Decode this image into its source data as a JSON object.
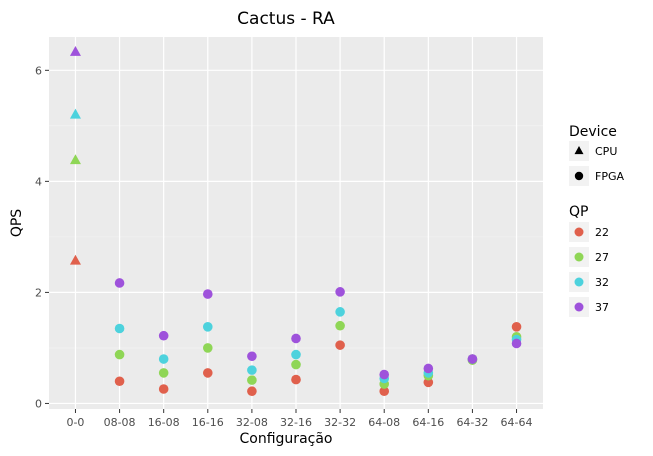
{
  "chart_data": {
    "type": "scatter",
    "title": "Cactus - RA",
    "xlabel": "Configuração",
    "ylabel": "QPS",
    "categories": [
      "0-0",
      "08-08",
      "16-08",
      "16-16",
      "32-08",
      "32-16",
      "32-32",
      "64-08",
      "64-16",
      "64-32",
      "64-64"
    ],
    "yticks": [
      0,
      2,
      4,
      6
    ],
    "ylim": [
      -0.1,
      6.6
    ],
    "grid": true,
    "legend_position": "right",
    "legends": {
      "shape": {
        "title": "Device",
        "entries": [
          {
            "label": "CPU",
            "shape": "triangle"
          },
          {
            "label": "FPGA",
            "shape": "circle"
          }
        ]
      },
      "color": {
        "title": "QP",
        "entries": [
          {
            "label": "22",
            "color": "#E0604C"
          },
          {
            "label": "27",
            "color": "#8FD656"
          },
          {
            "label": "32",
            "color": "#4DD2DD"
          },
          {
            "label": "37",
            "color": "#9E52DB"
          }
        ]
      }
    },
    "series": [
      {
        "qp": "22",
        "device": "CPU",
        "color": "#E0604C",
        "points": [
          {
            "x": "0-0",
            "y": 2.57
          }
        ]
      },
      {
        "qp": "27",
        "device": "CPU",
        "color": "#8FD656",
        "points": [
          {
            "x": "0-0",
            "y": 4.38
          }
        ]
      },
      {
        "qp": "32",
        "device": "CPU",
        "color": "#4DD2DD",
        "points": [
          {
            "x": "0-0",
            "y": 5.2
          }
        ]
      },
      {
        "qp": "37",
        "device": "CPU",
        "color": "#9E52DB",
        "points": [
          {
            "x": "0-0",
            "y": 6.33
          }
        ]
      },
      {
        "qp": "22",
        "device": "FPGA",
        "color": "#E0604C",
        "points": [
          {
            "x": "08-08",
            "y": 0.4
          },
          {
            "x": "16-08",
            "y": 0.26
          },
          {
            "x": "16-16",
            "y": 0.55
          },
          {
            "x": "32-08",
            "y": 0.22
          },
          {
            "x": "32-16",
            "y": 0.43
          },
          {
            "x": "32-32",
            "y": 1.05
          },
          {
            "x": "64-08",
            "y": 0.22
          },
          {
            "x": "64-16",
            "y": 0.38
          },
          {
            "x": "64-32",
            "y": 0.8
          },
          {
            "x": "64-64",
            "y": 1.38
          }
        ]
      },
      {
        "qp": "27",
        "device": "FPGA",
        "color": "#8FD656",
        "points": [
          {
            "x": "08-08",
            "y": 0.88
          },
          {
            "x": "16-08",
            "y": 0.55
          },
          {
            "x": "16-16",
            "y": 1.0
          },
          {
            "x": "32-08",
            "y": 0.42
          },
          {
            "x": "32-16",
            "y": 0.7
          },
          {
            "x": "32-32",
            "y": 1.4
          },
          {
            "x": "64-08",
            "y": 0.35
          },
          {
            "x": "64-16",
            "y": 0.5
          },
          {
            "x": "64-32",
            "y": 0.78
          },
          {
            "x": "64-64",
            "y": 1.2
          }
        ]
      },
      {
        "qp": "32",
        "device": "FPGA",
        "color": "#4DD2DD",
        "points": [
          {
            "x": "08-08",
            "y": 1.35
          },
          {
            "x": "16-08",
            "y": 0.8
          },
          {
            "x": "16-16",
            "y": 1.38
          },
          {
            "x": "32-08",
            "y": 0.6
          },
          {
            "x": "32-16",
            "y": 0.88
          },
          {
            "x": "32-32",
            "y": 1.65
          },
          {
            "x": "64-08",
            "y": 0.45
          },
          {
            "x": "64-16",
            "y": 0.55
          },
          {
            "x": "64-32",
            "y": 0.8
          },
          {
            "x": "64-64",
            "y": 1.15
          }
        ]
      },
      {
        "qp": "37",
        "device": "FPGA",
        "color": "#9E52DB",
        "points": [
          {
            "x": "08-08",
            "y": 2.17
          },
          {
            "x": "16-08",
            "y": 1.22
          },
          {
            "x": "16-16",
            "y": 1.97
          },
          {
            "x": "32-08",
            "y": 0.85
          },
          {
            "x": "32-16",
            "y": 1.17
          },
          {
            "x": "32-32",
            "y": 2.01
          },
          {
            "x": "64-08",
            "y": 0.52
          },
          {
            "x": "64-16",
            "y": 0.63
          },
          {
            "x": "64-32",
            "y": 0.8
          },
          {
            "x": "64-64",
            "y": 1.08
          }
        ]
      }
    ]
  }
}
